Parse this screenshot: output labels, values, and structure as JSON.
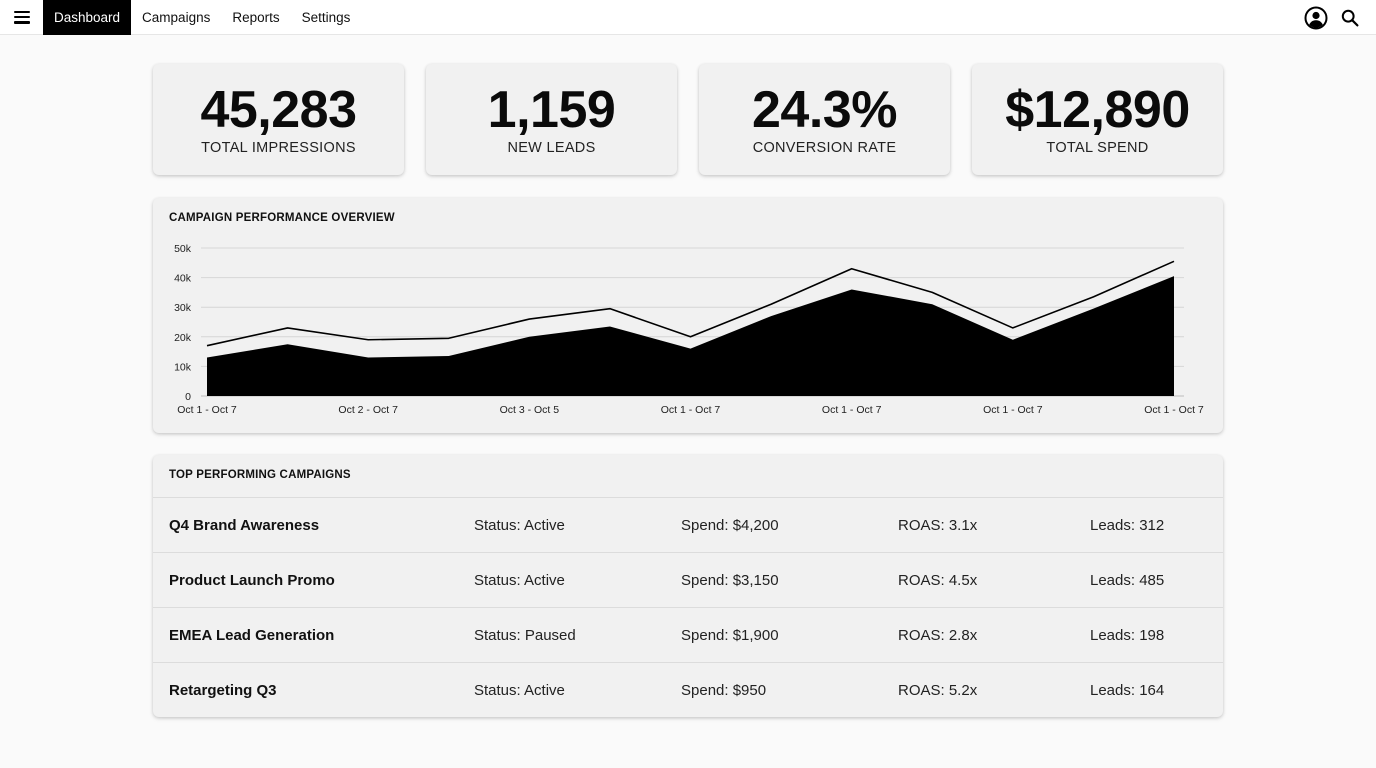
{
  "nav": {
    "menu_icon": "hamburger-menu-icon",
    "tabs": [
      {
        "label": "Dashboard",
        "active": true
      },
      {
        "label": "Campaigns",
        "active": false
      },
      {
        "label": "Reports",
        "active": false
      },
      {
        "label": "Settings",
        "active": false
      }
    ],
    "right_icons": [
      "user-account-icon",
      "search-icon"
    ]
  },
  "kpis": [
    {
      "value": "45,283",
      "label": "TOTAL IMPRESSIONS"
    },
    {
      "value": "1,159",
      "label": "NEW LEADS"
    },
    {
      "value": "24.3%",
      "label": "CONVERSION RATE"
    },
    {
      "value": "$12,890",
      "label": "TOTAL SPEND"
    }
  ],
  "chart_data": {
    "type": "area",
    "title": "CAMPAIGN PERFORMANCE OVERVIEW",
    "xlabel": "",
    "ylabel": "",
    "ylim": [
      0,
      50000
    ],
    "yticks": [
      "0",
      "10k",
      "20k",
      "30k",
      "40k",
      "50k"
    ],
    "xtick_labels": [
      "Oct 1 - Oct 7",
      "Oct 2 - Oct 7",
      "Oct 3 - Oct 5",
      "Oct 1 - Oct 7",
      "Oct 1 - Oct 7",
      "Oct 1 - Oct 7",
      "Oct 1 - Oct 7"
    ],
    "grid": true,
    "legend": "none",
    "series": [
      {
        "style": "line",
        "color": "#000000",
        "values": [
          17000,
          23000,
          19000,
          19500,
          26000,
          29500,
          20000,
          31000,
          43000,
          35000,
          23000,
          33500,
          45500
        ]
      },
      {
        "style": "filled-area",
        "color": "#000000",
        "values": [
          13000,
          17500,
          13000,
          13500,
          20000,
          23500,
          16000,
          27000,
          36000,
          31000,
          19000,
          29500,
          40500
        ]
      }
    ]
  },
  "campaigns": {
    "title": "TOP PERFORMING CAMPAIGNS",
    "rows": [
      {
        "name": "Q4 Brand Awareness",
        "status": "Status: Active",
        "spend": "Spend: $4,200",
        "roas": "ROAS: 3.1x",
        "leads": "Leads: 312"
      },
      {
        "name": "Product Launch Promo",
        "status": "Status: Active",
        "spend": "Spend: $3,150",
        "roas": "ROAS: 4.5x",
        "leads": "Leads: 485"
      },
      {
        "name": "EMEA Lead Generation",
        "status": "Status: Paused",
        "spend": "Spend: $1,900",
        "roas": "ROAS: 2.8x",
        "leads": "Leads: 198"
      },
      {
        "name": "Retargeting Q3",
        "status": "Status: Active",
        "spend": "Spend: $950",
        "roas": "ROAS: 5.2x",
        "leads": "Leads: 164"
      }
    ]
  }
}
